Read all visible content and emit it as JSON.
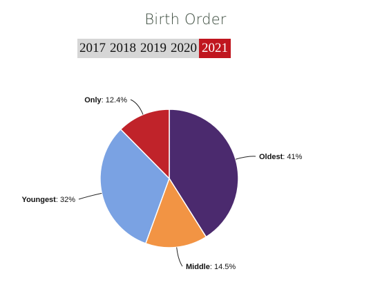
{
  "title": "Birth Order",
  "years": [
    {
      "label": "2017",
      "active": false
    },
    {
      "label": "2018",
      "active": false
    },
    {
      "label": "2019",
      "active": false
    },
    {
      "label": "2020",
      "active": false
    },
    {
      "label": "2021",
      "active": true
    }
  ],
  "colors": {
    "active_tab": "#c0161f",
    "tab_bar": "#d6d6d6"
  },
  "chart_data": {
    "type": "pie",
    "title": "Birth Order",
    "start_angle_deg": 0,
    "direction": "clockwise",
    "slices": [
      {
        "label": "Oldest",
        "value": 41,
        "display": "41%",
        "color": "#4b2a6e"
      },
      {
        "label": "Middle",
        "value": 14.5,
        "display": "14.5%",
        "color": "#f29444"
      },
      {
        "label": "Youngest",
        "value": 32,
        "display": "32%",
        "color": "#7aa2e3"
      },
      {
        "label": "Only",
        "value": 12.4,
        "display": "12.4%",
        "color": "#c0232a"
      }
    ]
  }
}
